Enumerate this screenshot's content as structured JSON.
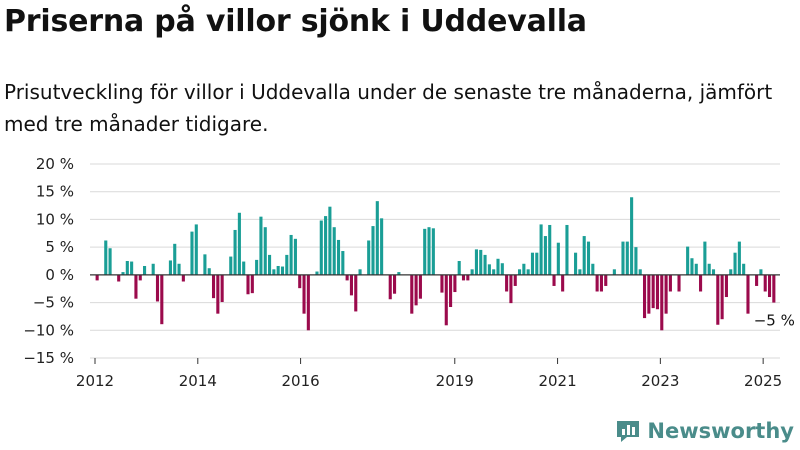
{
  "title": "Priserna på villor sjönk i Uddevalla",
  "subtitle": "Prisutveckling för villor i Uddevalla under de senaste tre månaderna, jämfört med tre månader tidigare.",
  "logo_text": "Newsworthy",
  "colors": {
    "positive": "#1a9e96",
    "negative": "#9b0a4c",
    "grid": "#d9d9d9",
    "zero": "#333333"
  },
  "chart_data": {
    "type": "bar",
    "ylim": [
      -15,
      20
    ],
    "yticks": [
      -15,
      -10,
      -5,
      0,
      5,
      10,
      15,
      20
    ],
    "ytick_labels": [
      "−15 %",
      "−10 %",
      "−5 %",
      "0 %",
      "5 %",
      "10 %",
      "15 %",
      "20 %"
    ],
    "xticks": [
      2012,
      2014,
      2016,
      2019,
      2021,
      2023,
      2025
    ],
    "xtick_labels": [
      "2012",
      "2014",
      "2016",
      "2019",
      "2021",
      "2023",
      "2025"
    ],
    "grid": true,
    "start_year": 2012,
    "end_year": 2025.25,
    "values": [
      -1.0,
      0,
      6.2,
      4.8,
      0,
      -1.2,
      0.5,
      2.5,
      2.4,
      -4.3,
      -1.0,
      1.6,
      0,
      2.0,
      -4.8,
      -8.9,
      0,
      2.6,
      5.6,
      2.0,
      -1.2,
      0,
      7.8,
      9.1,
      0,
      3.7,
      1.2,
      -4.2,
      -7.0,
      -4.9,
      0,
      3.3,
      8.1,
      11.2,
      2.4,
      -3.5,
      -3.3,
      2.7,
      10.5,
      8.6,
      3.6,
      1.0,
      1.6,
      1.5,
      3.6,
      7.2,
      6.5,
      -2.4,
      -7.0,
      -10.0,
      0,
      0.6,
      9.8,
      10.6,
      12.3,
      8.6,
      6.3,
      4.3,
      -1.0,
      -3.7,
      -6.6,
      1.0,
      0,
      6.2,
      8.8,
      13.3,
      10.2,
      0,
      -4.4,
      -3.4,
      0.5,
      0,
      0,
      -7.0,
      -5.5,
      -4.3,
      8.3,
      8.6,
      8.4,
      0,
      -3.2,
      -9.1,
      -5.8,
      -3.1,
      2.5,
      -1.0,
      -1.0,
      1.0,
      4.6,
      4.5,
      3.6,
      1.9,
      1.0,
      2.9,
      2.1,
      -3.0,
      -5.1,
      -2.0,
      1.0,
      2.0,
      1.0,
      4.0,
      4.0,
      9.1,
      7.0,
      9.0,
      -2.0,
      5.8,
      -3.0,
      9.0,
      0,
      4.0,
      1.0,
      7.0,
      6.0,
      2.0,
      -3.0,
      -3.0,
      -2.0,
      0,
      1.0,
      0,
      6.0,
      6.0,
      14.0,
      5.0,
      1.0,
      -7.8,
      -7.0,
      -6.0,
      -6.2,
      -10.0,
      -7.0,
      -3.0,
      0,
      -3.0,
      0,
      5.1,
      3.0,
      2.0,
      -3.0,
      6.0,
      2.0,
      1.0,
      -9.0,
      -8.0,
      -4.0,
      1.0,
      4.0,
      6.0,
      2.0,
      -7.0,
      0,
      -2.0,
      1.0,
      -3.0,
      -4.0,
      -5.0
    ],
    "annotations": [
      {
        "text": "−5 %"
      }
    ]
  }
}
